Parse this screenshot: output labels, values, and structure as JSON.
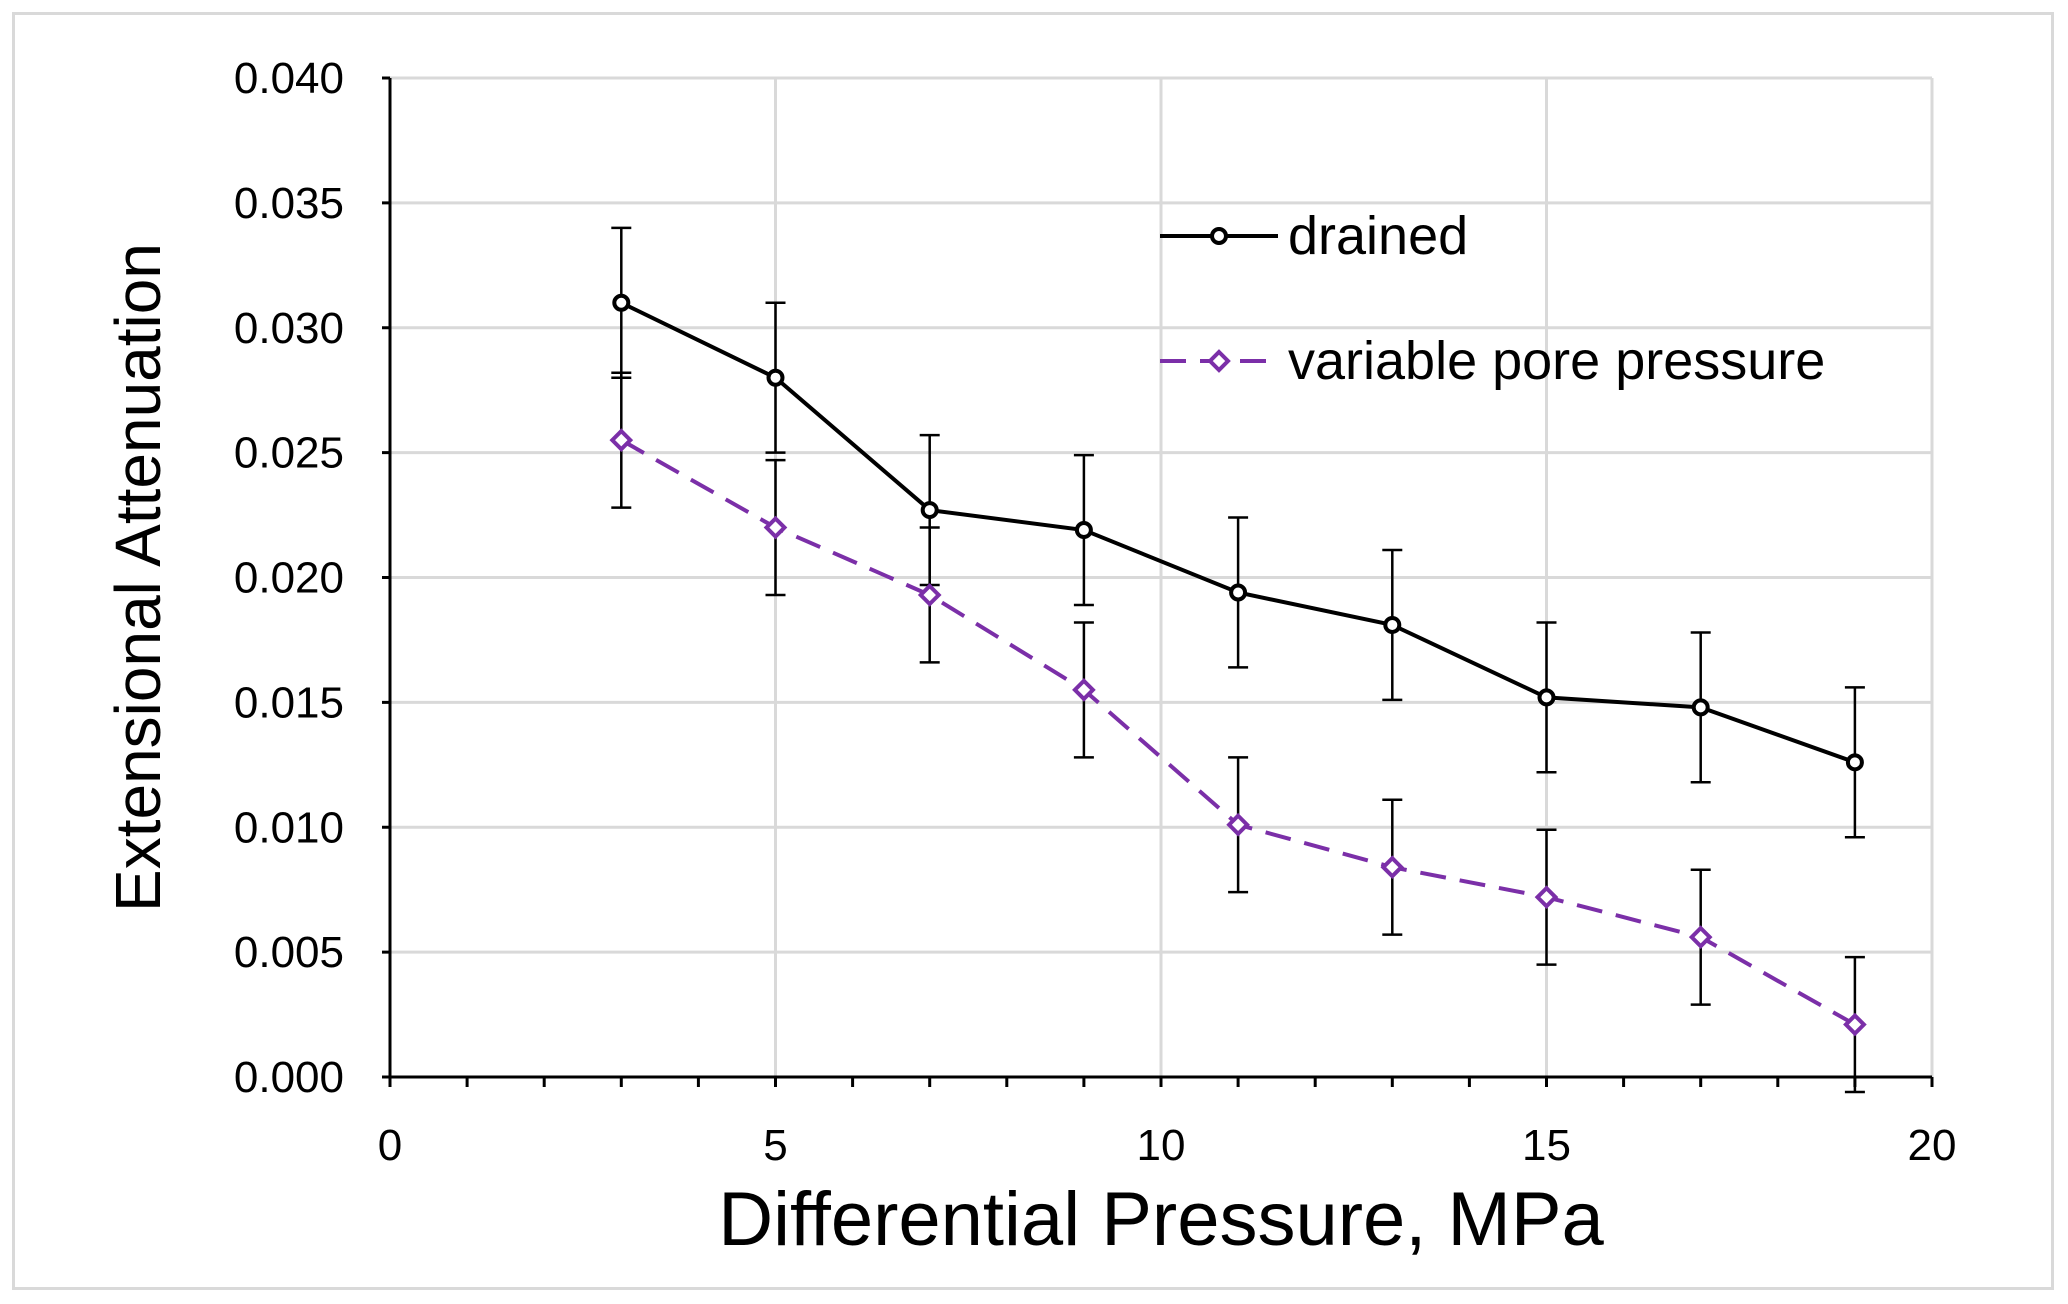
{
  "chart_data": {
    "type": "line",
    "title": "",
    "xlabel": "Differential Pressure, MPa",
    "ylabel": "Extensional Attenuation",
    "xlim": [
      0,
      20
    ],
    "ylim": [
      0,
      0.04
    ],
    "x_ticks": [
      "0",
      "5",
      "10",
      "15",
      "20"
    ],
    "y_ticks": [
      "0.000",
      "0.005",
      "0.010",
      "0.015",
      "0.020",
      "0.025",
      "0.030",
      "0.035",
      "0.040"
    ],
    "grid": true,
    "legend_position": "top-right",
    "x": [
      3,
      5,
      7,
      9,
      11,
      13,
      15,
      17,
      19
    ],
    "series": [
      {
        "name": "drained",
        "color": "#000000",
        "line_style": "solid",
        "marker": "circle",
        "values": [
          0.031,
          0.028,
          0.0227,
          0.0219,
          0.0194,
          0.0181,
          0.0152,
          0.0148,
          0.0126
        ],
        "error": [
          0.003,
          0.003,
          0.003,
          0.003,
          0.003,
          0.003,
          0.003,
          0.003,
          0.003
        ]
      },
      {
        "name": "variable pore pressure",
        "color": "#7b2fa8",
        "line_style": "dashed",
        "marker": "diamond",
        "values": [
          0.0255,
          0.022,
          0.0193,
          0.0155,
          0.0101,
          0.0084,
          0.0072,
          0.0056,
          0.0021
        ],
        "error": [
          0.0027,
          0.0027,
          0.0027,
          0.0027,
          0.0027,
          0.0027,
          0.0027,
          0.0027,
          0.0027
        ]
      }
    ]
  }
}
